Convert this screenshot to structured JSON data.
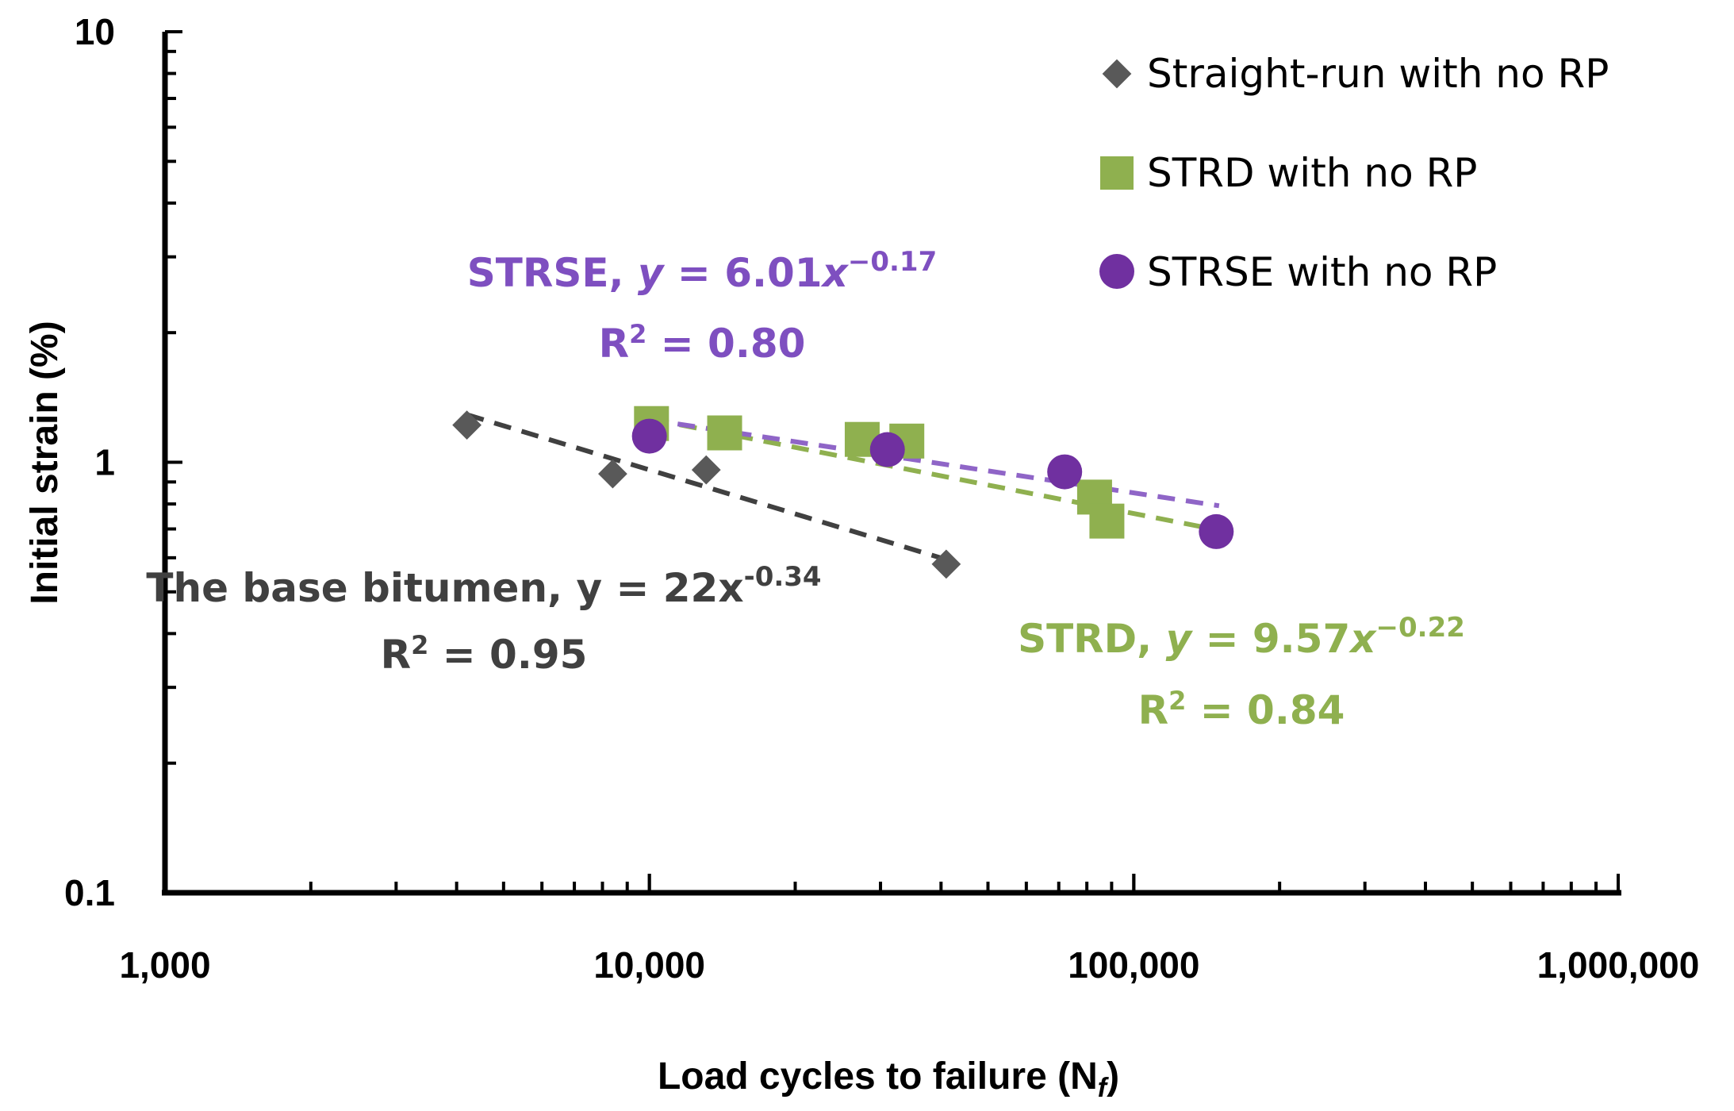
{
  "chart_data": {
    "type": "scatter",
    "title": "",
    "xlabel": "Load cycles to failure (N",
    "xlabel_sub": "f",
    "xlabel_close": ")",
    "ylabel": "Initial strain (%)",
    "xscale": "log",
    "yscale": "log",
    "xlim": [
      1000,
      1000000
    ],
    "ylim": [
      0.1,
      10
    ],
    "x_ticks": [
      1000,
      10000,
      100000,
      1000000
    ],
    "x_tick_labels": [
      "1,000",
      "10,000",
      "100,000",
      "1,000,000"
    ],
    "y_ticks": [
      0.1,
      1,
      10
    ],
    "y_tick_labels": [
      "0.1",
      "1",
      "10"
    ],
    "grid": false,
    "legend_position": "top-right",
    "series": [
      {
        "name": "Straight-run with no RP",
        "marker": "diamond",
        "color": "#595959",
        "trend_color": "#404040",
        "x": [
          4200,
          8400,
          13100,
          41000
        ],
        "y": [
          1.22,
          0.94,
          0.96,
          0.58
        ],
        "fit": {
          "a": 22,
          "b": -0.34,
          "x_range": [
            4200,
            41000
          ]
        }
      },
      {
        "name": "STRD with no RP",
        "marker": "square",
        "color": "#8fb04f",
        "trend_color": "#8fb04f",
        "x": [
          10100,
          14300,
          27500,
          34000,
          83000,
          88000
        ],
        "y": [
          1.23,
          1.17,
          1.13,
          1.12,
          0.83,
          0.73
        ],
        "fit": {
          "a": 9.57,
          "b": -0.22,
          "x_range": [
            10100,
            150000
          ]
        }
      },
      {
        "name": "STRSE with no RP",
        "marker": "circle",
        "color": "#7030a0",
        "trend_color": "#8f65c7",
        "x": [
          10000,
          31000,
          72000,
          148000
        ],
        "y": [
          1.15,
          1.07,
          0.95,
          0.69
        ],
        "fit": {
          "a": 6.01,
          "b": -0.17,
          "x_range": [
            10000,
            150000
          ]
        }
      }
    ],
    "annotations": [
      {
        "id": "base",
        "color": "#404040",
        "prefix": "The base bitumen, y = 22x",
        "exponent": "-0.34",
        "r2_label": "R",
        "r2_sup": "2",
        "r2_value": " = 0.95"
      },
      {
        "id": "strse",
        "color": "#7e4fc0",
        "name": "STRSE, ",
        "y": "y",
        "eq": " = 6.01",
        "x": "x",
        "exponent": "−0.17",
        "r2_label": "R",
        "r2_sup": "2",
        "r2_value": " = 0.80"
      },
      {
        "id": "strd",
        "color": "#8fb04f",
        "name": "STRD, ",
        "y": "y",
        "eq": " = 9.57",
        "x": "x",
        "exponent": "−0.22",
        "r2_label": "R",
        "r2_sup": "2",
        "r2_value": " = 0.84"
      }
    ]
  }
}
